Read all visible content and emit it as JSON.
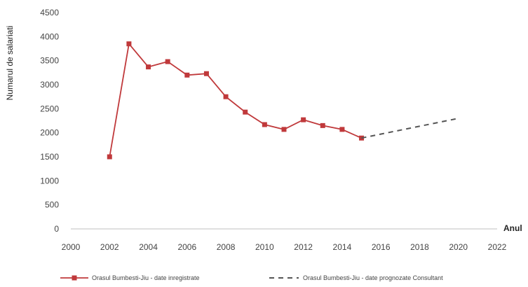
{
  "chart_data": {
    "type": "line",
    "title": "",
    "xlabel": "Anul",
    "ylabel": "Numarul de salariati",
    "xlim": [
      2000,
      2022
    ],
    "ylim": [
      0,
      4500
    ],
    "x_ticks": [
      2000,
      2002,
      2004,
      2006,
      2008,
      2010,
      2012,
      2014,
      2016,
      2018,
      2020,
      2022
    ],
    "y_ticks": [
      0,
      500,
      1000,
      1500,
      2000,
      2500,
      3000,
      3500,
      4000,
      4500
    ],
    "grid": false,
    "legend_position": "bottom",
    "series": [
      {
        "name": "Orasul Bumbesti-Jiu - date inregistrate",
        "color": "#c0393b",
        "style": "solid",
        "marker": "square",
        "x": [
          2002,
          2003,
          2004,
          2005,
          2006,
          2007,
          2008,
          2009,
          2010,
          2011,
          2012,
          2013,
          2014,
          2015
        ],
        "y": [
          1500,
          3850,
          3370,
          3480,
          3200,
          3230,
          2750,
          2430,
          2170,
          2070,
          2270,
          2150,
          2070,
          1890
        ]
      },
      {
        "name": "Orasul Bumbesti-Jiu - date prognozate Consultant",
        "color": "#555555",
        "style": "dashed",
        "marker": "none",
        "x": [
          2015,
          2020
        ],
        "y": [
          1890,
          2300
        ]
      }
    ]
  }
}
